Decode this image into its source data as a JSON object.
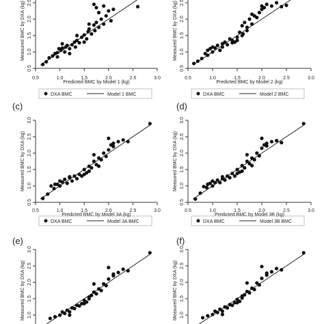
{
  "chart_data": [
    {
      "type": "scatter",
      "panel_label": "",
      "ylabel": "Measured BMC by DXA (kg)",
      "xlabel": "Predicted BMC by Model 1 (kg)",
      "xlim": [
        0.5,
        3.0
      ],
      "ylim": [
        0.5,
        3.0
      ],
      "xticks": [
        "0.5",
        "1.0",
        "1.5",
        "2.0",
        "2.5",
        "3.0"
      ],
      "yticks": [
        "0.5",
        "1.0",
        "1.5",
        "2.0",
        "2.5"
      ],
      "legend": {
        "points": "DXA BMC",
        "line": "Model 1 BMC"
      },
      "points": {
        "x": [
          0.65,
          0.72,
          0.78,
          0.85,
          0.9,
          0.95,
          0.98,
          1.02,
          1.05,
          1.1,
          1.12,
          1.15,
          1.2,
          1.25,
          1.3,
          1.32,
          1.35,
          1.4,
          1.45,
          1.5,
          1.55,
          1.58,
          1.6,
          1.65,
          1.7,
          1.72,
          1.75,
          1.8,
          1.85,
          1.9,
          1.95,
          2.0,
          2.05,
          1.7,
          1.75,
          1.8,
          1.9,
          2.1,
          2.6,
          1.5,
          1.6,
          1.2,
          1.05,
          0.95,
          1.35
        ],
        "y": [
          0.62,
          0.7,
          0.82,
          0.88,
          0.95,
          0.98,
          1.1,
          1.05,
          1.12,
          1.0,
          1.15,
          1.2,
          1.1,
          1.22,
          1.3,
          1.15,
          1.35,
          1.28,
          1.45,
          1.52,
          1.4,
          1.62,
          1.7,
          1.55,
          1.82,
          1.65,
          1.9,
          1.75,
          2.0,
          1.85,
          2.1,
          2.25,
          1.95,
          2.45,
          2.35,
          2.2,
          2.4,
          2.3,
          2.38,
          1.3,
          1.85,
          0.95,
          1.25,
          0.85,
          1.5
        ]
      },
      "line": {
        "x": [
          0.6,
          2.8
        ],
        "y": [
          0.6,
          2.8
        ]
      }
    },
    {
      "type": "scatter",
      "panel_label": "",
      "ylabel": "Measured BMC by DXA (kg)",
      "xlabel": "Predicted BMC by Model 2 (kg)",
      "xlim": [
        0.5,
        3.0
      ],
      "ylim": [
        0.5,
        3.0
      ],
      "xticks": [
        "0.5",
        "1.0",
        "1.5",
        "2.0",
        "2.5",
        "3.0"
      ],
      "yticks": [
        "0.5",
        "1.0",
        "1.5",
        "2.0",
        "2.5"
      ],
      "legend": {
        "points": "DXA BMC",
        "line": "Model 2 BMC"
      },
      "points": {
        "x": [
          0.62,
          0.7,
          0.78,
          0.85,
          0.9,
          0.95,
          1.0,
          1.05,
          1.1,
          1.15,
          1.2,
          1.25,
          1.3,
          1.35,
          1.4,
          1.45,
          1.5,
          1.55,
          1.6,
          1.62,
          1.65,
          1.7,
          1.75,
          1.8,
          1.85,
          1.9,
          1.95,
          2.0,
          2.05,
          2.1,
          2.2,
          2.3,
          2.4,
          2.5,
          1.6,
          1.7,
          1.5,
          1.2,
          1.0,
          0.9,
          1.4,
          1.8,
          2.0
        ],
        "y": [
          0.65,
          0.72,
          0.8,
          0.95,
          0.9,
          1.1,
          1.0,
          1.12,
          1.2,
          1.05,
          1.15,
          1.3,
          1.22,
          1.4,
          1.35,
          1.3,
          1.45,
          1.6,
          1.8,
          1.55,
          1.9,
          1.75,
          2.0,
          1.85,
          2.1,
          2.05,
          2.2,
          2.3,
          2.35,
          2.45,
          2.4,
          2.5,
          2.38,
          2.42,
          1.5,
          1.65,
          1.35,
          1.25,
          1.15,
          1.05,
          1.28,
          2.15,
          2.4
        ]
      },
      "line": {
        "x": [
          0.6,
          2.8
        ],
        "y": [
          0.6,
          2.8
        ]
      }
    },
    {
      "type": "scatter",
      "panel_label": "(c)",
      "ylabel": "Measured BMC by DXA (kg)",
      "xlabel": "Predicted BMC by Model 3A (kg)",
      "xlim": [
        0.5,
        3.0
      ],
      "ylim": [
        0.5,
        3.0
      ],
      "xticks": [
        "0.5",
        "1.0",
        "1.5",
        "2.0",
        "2.5",
        "3.0"
      ],
      "yticks": [
        "0.5",
        "1.0",
        "1.5",
        "2.0",
        "2.5",
        "3.0"
      ],
      "legend": {
        "points": "DXA BMC",
        "line": "Model 3A BMC"
      },
      "points": {
        "x": [
          0.65,
          0.75,
          0.82,
          0.88,
          0.95,
          1.0,
          1.05,
          1.1,
          1.15,
          1.2,
          1.25,
          1.3,
          1.35,
          1.4,
          1.45,
          1.5,
          1.55,
          1.6,
          1.65,
          1.7,
          1.75,
          1.8,
          1.85,
          1.9,
          1.95,
          2.0,
          2.05,
          2.1,
          2.2,
          2.3,
          2.4,
          2.85,
          1.7,
          1.8,
          1.6,
          1.5,
          1.2,
          1.0,
          0.9,
          2.0,
          2.1
        ],
        "y": [
          0.62,
          0.75,
          1.0,
          0.92,
          1.05,
          1.0,
          1.12,
          1.2,
          1.08,
          1.25,
          1.15,
          1.3,
          1.22,
          1.35,
          1.3,
          1.5,
          1.4,
          1.6,
          1.55,
          1.75,
          1.65,
          1.85,
          1.8,
          2.0,
          1.9,
          2.1,
          2.25,
          2.3,
          2.35,
          2.4,
          2.35,
          2.9,
          1.95,
          1.6,
          1.45,
          1.35,
          1.28,
          1.15,
          1.05,
          2.45,
          2.2
        ]
      },
      "line": {
        "x": [
          0.6,
          2.85
        ],
        "y": [
          0.6,
          2.85
        ]
      }
    },
    {
      "type": "scatter",
      "panel_label": "(d)",
      "ylabel": "Measured BMC by DXA (kg)",
      "xlabel": "Predicted BMC by Model 3B (kg)",
      "xlim": [
        0.5,
        3.0
      ],
      "ylim": [
        0.5,
        3.0
      ],
      "xticks": [
        "0.5",
        "1.0",
        "1.5",
        "2.0",
        "2.5",
        "3.0"
      ],
      "yticks": [
        "0.5",
        "1.0",
        "1.5",
        "2.0",
        "2.5",
        "3.0"
      ],
      "legend": {
        "points": "DXA BMC",
        "line": "Model 3B BMC"
      },
      "points": {
        "x": [
          0.65,
          0.75,
          0.82,
          0.88,
          0.95,
          1.0,
          1.05,
          1.1,
          1.15,
          1.2,
          1.25,
          1.3,
          1.35,
          1.4,
          1.45,
          1.5,
          1.55,
          1.6,
          1.65,
          1.7,
          1.75,
          1.8,
          1.85,
          1.9,
          1.95,
          2.0,
          2.05,
          2.1,
          2.2,
          2.3,
          2.4,
          2.85,
          1.7,
          1.8,
          1.6,
          1.5,
          1.2,
          1.0,
          0.9,
          2.0,
          2.1
        ],
        "y": [
          0.6,
          0.78,
          0.98,
          0.95,
          1.08,
          1.0,
          1.1,
          1.18,
          1.1,
          1.22,
          1.18,
          1.3,
          1.25,
          1.38,
          1.3,
          1.5,
          1.42,
          1.62,
          1.55,
          1.75,
          1.68,
          1.85,
          1.8,
          2.0,
          1.92,
          2.15,
          2.25,
          2.3,
          2.35,
          2.38,
          2.32,
          2.9,
          1.95,
          1.62,
          1.45,
          1.38,
          1.28,
          1.15,
          1.05,
          2.45,
          2.22
        ]
      },
      "line": {
        "x": [
          0.6,
          2.85
        ],
        "y": [
          0.6,
          2.85
        ]
      }
    },
    {
      "type": "scatter",
      "panel_label": "(e)",
      "ylabel": "Measured BMC by DXA (kg)",
      "xlabel": "",
      "xlim": [
        0.5,
        3.0
      ],
      "ylim": [
        0.5,
        3.0
      ],
      "xticks": [],
      "yticks": [
        "1.0",
        "1.5",
        "2.0",
        "2.5",
        "3.0"
      ],
      "legend": {
        "points": "",
        "line": ""
      },
      "points": {
        "x": [
          0.8,
          0.9,
          1.0,
          1.05,
          1.1,
          1.15,
          1.2,
          1.25,
          1.3,
          1.35,
          1.4,
          1.45,
          1.5,
          1.55,
          1.6,
          1.65,
          1.7,
          1.75,
          1.8,
          1.85,
          1.9,
          1.95,
          2.0,
          2.1,
          2.2,
          2.3,
          2.4,
          2.85,
          1.7,
          1.6,
          1.5,
          1.2,
          2.0,
          2.1
        ],
        "y": [
          0.9,
          0.95,
          1.0,
          1.1,
          1.05,
          1.15,
          1.1,
          1.22,
          1.2,
          1.3,
          1.28,
          1.35,
          1.45,
          1.4,
          1.55,
          1.6,
          1.7,
          1.65,
          1.8,
          1.75,
          1.95,
          1.9,
          2.1,
          2.25,
          2.3,
          2.4,
          2.35,
          2.9,
          1.95,
          1.5,
          1.35,
          1.0,
          2.45,
          2.2
        ]
      },
      "line": {
        "x": [
          0.6,
          2.85
        ],
        "y": [
          0.6,
          2.85
        ]
      }
    },
    {
      "type": "scatter",
      "panel_label": "(f)",
      "ylabel": "Measured BMC by DXA (kg)",
      "xlabel": "",
      "xlim": [
        0.5,
        3.0
      ],
      "ylim": [
        0.5,
        3.0
      ],
      "xticks": [],
      "yticks": [
        "1.0",
        "1.5",
        "2.0",
        "2.5",
        "3.0"
      ],
      "legend": {
        "points": "",
        "line": ""
      },
      "points": {
        "x": [
          0.8,
          0.9,
          1.0,
          1.05,
          1.1,
          1.15,
          1.2,
          1.25,
          1.3,
          1.35,
          1.4,
          1.45,
          1.5,
          1.55,
          1.6,
          1.65,
          1.7,
          1.75,
          1.8,
          1.85,
          1.9,
          1.95,
          2.0,
          2.1,
          2.2,
          2.3,
          2.4,
          2.85,
          1.7,
          1.6,
          1.5,
          1.2,
          2.0,
          2.1
        ],
        "y": [
          0.92,
          0.98,
          1.02,
          1.12,
          1.08,
          1.18,
          1.12,
          1.25,
          1.22,
          1.32,
          1.3,
          1.38,
          1.48,
          1.42,
          1.58,
          1.62,
          1.72,
          1.68,
          1.82,
          1.78,
          1.98,
          1.92,
          2.12,
          2.28,
          2.32,
          2.42,
          2.38,
          2.9,
          1.98,
          1.52,
          1.38,
          1.02,
          2.48,
          2.22
        ]
      },
      "line": {
        "x": [
          0.6,
          2.85
        ],
        "y": [
          0.6,
          2.85
        ]
      }
    }
  ]
}
